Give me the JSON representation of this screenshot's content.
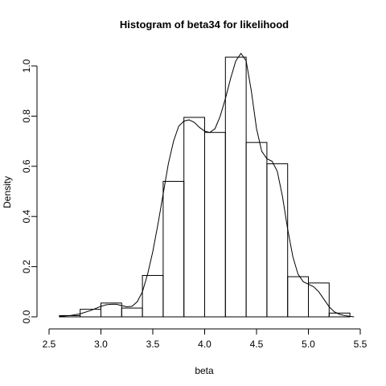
{
  "chart_data": {
    "type": "histogram",
    "title": "Histogram of beta34 for likelihood",
    "xlabel": "beta",
    "ylabel": "Density",
    "xlim": [
      2.6,
      5.5
    ],
    "ylim": [
      0,
      1.05
    ],
    "x_ticks": [
      "2.5",
      "3.0",
      "3.5",
      "4.0",
      "4.5",
      "5.0",
      "5.5"
    ],
    "x_tick_values": [
      2.5,
      3.0,
      3.5,
      4.0,
      4.5,
      5.0,
      5.5
    ],
    "y_ticks": [
      "0.0",
      "0.2",
      "0.4",
      "0.6",
      "0.8",
      "1.0"
    ],
    "y_tick_values": [
      0.0,
      0.2,
      0.4,
      0.6,
      0.8,
      1.0
    ],
    "grid": false,
    "bins": [
      {
        "x0": 2.6,
        "x1": 2.8,
        "density": 0.005
      },
      {
        "x0": 2.8,
        "x1": 3.0,
        "density": 0.03
      },
      {
        "x0": 3.0,
        "x1": 3.2,
        "density": 0.055
      },
      {
        "x0": 3.2,
        "x1": 3.4,
        "density": 0.035
      },
      {
        "x0": 3.4,
        "x1": 3.6,
        "density": 0.165
      },
      {
        "x0": 3.6,
        "x1": 3.8,
        "density": 0.54
      },
      {
        "x0": 3.8,
        "x1": 4.0,
        "density": 0.795
      },
      {
        "x0": 4.0,
        "x1": 4.2,
        "density": 0.735
      },
      {
        "x0": 4.2,
        "x1": 4.4,
        "density": 1.035
      },
      {
        "x0": 4.4,
        "x1": 4.6,
        "density": 0.695
      },
      {
        "x0": 4.6,
        "x1": 4.8,
        "density": 0.61
      },
      {
        "x0": 4.8,
        "x1": 5.0,
        "density": 0.16
      },
      {
        "x0": 5.0,
        "x1": 5.2,
        "density": 0.135
      },
      {
        "x0": 5.2,
        "x1": 5.4,
        "density": 0.015
      }
    ],
    "density_curve": {
      "x": [
        2.6,
        2.7,
        2.8,
        2.9,
        3.0,
        3.05,
        3.1,
        3.15,
        3.2,
        3.25,
        3.3,
        3.35,
        3.4,
        3.45,
        3.5,
        3.55,
        3.6,
        3.65,
        3.7,
        3.75,
        3.8,
        3.85,
        3.9,
        3.95,
        4.0,
        4.05,
        4.1,
        4.15,
        4.2,
        4.25,
        4.3,
        4.35,
        4.4,
        4.45,
        4.5,
        4.55,
        4.6,
        4.65,
        4.7,
        4.75,
        4.8,
        4.85,
        4.9,
        4.95,
        5.0,
        5.05,
        5.1,
        5.15,
        5.2,
        5.25,
        5.3,
        5.35,
        5.4,
        5.44
      ],
      "y": [
        0.002,
        0.005,
        0.012,
        0.025,
        0.042,
        0.048,
        0.05,
        0.05,
        0.045,
        0.04,
        0.042,
        0.06,
        0.1,
        0.17,
        0.26,
        0.37,
        0.49,
        0.61,
        0.7,
        0.76,
        0.78,
        0.785,
        0.775,
        0.755,
        0.74,
        0.735,
        0.75,
        0.8,
        0.87,
        0.95,
        1.02,
        1.05,
        1.02,
        0.9,
        0.75,
        0.66,
        0.63,
        0.62,
        0.58,
        0.48,
        0.35,
        0.24,
        0.17,
        0.14,
        0.13,
        0.12,
        0.1,
        0.07,
        0.04,
        0.02,
        0.01,
        0.005,
        0.002,
        0.0
      ]
    }
  }
}
